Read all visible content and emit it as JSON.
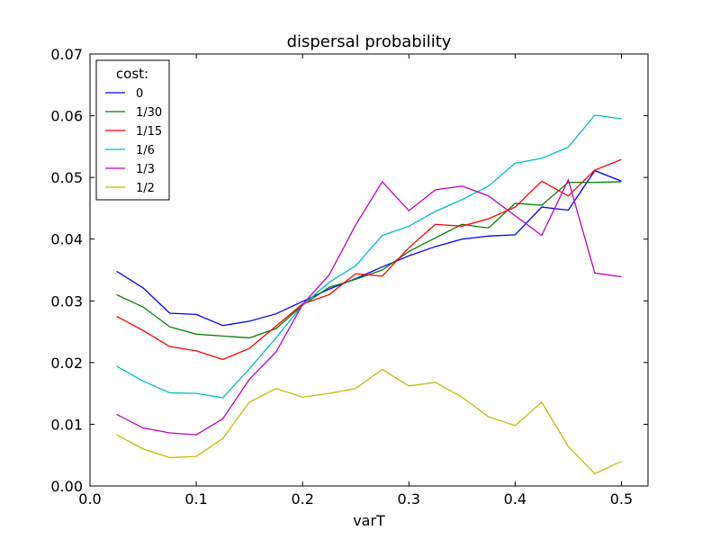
{
  "chart_data": {
    "type": "line",
    "title": "dispersal probability",
    "xlabel": "varT",
    "ylabel": "",
    "xlim": [
      0.0,
      0.525
    ],
    "ylim": [
      0.0,
      0.07
    ],
    "xticks": [
      0.0,
      0.1,
      0.2,
      0.3,
      0.4,
      0.5
    ],
    "xtick_labels": [
      "0.0",
      "0.1",
      "0.2",
      "0.3",
      "0.4",
      "0.5"
    ],
    "yticks": [
      0.0,
      0.01,
      0.02,
      0.03,
      0.04,
      0.05,
      0.06,
      0.07
    ],
    "ytick_labels": [
      "0.00",
      "0.01",
      "0.02",
      "0.03",
      "0.04",
      "0.05",
      "0.06",
      "0.07"
    ],
    "grid": false,
    "legend": {
      "title": "cost:",
      "placement": "top-left"
    },
    "x": [
      0.025,
      0.05,
      0.075,
      0.1,
      0.125,
      0.15,
      0.175,
      0.2,
      0.225,
      0.25,
      0.275,
      0.3,
      0.325,
      0.35,
      0.375,
      0.4,
      0.425,
      0.45,
      0.475,
      0.5
    ],
    "series": [
      {
        "name": "0",
        "color": "#0000ff",
        "values": [
          0.0348,
          0.0321,
          0.028,
          0.0278,
          0.026,
          0.0267,
          0.0279,
          0.0299,
          0.0319,
          0.0336,
          0.0355,
          0.0373,
          0.0388,
          0.04,
          0.0405,
          0.0407,
          0.0452,
          0.0447,
          0.0511,
          0.0494
        ]
      },
      {
        "name": "1/30",
        "color": "#008000",
        "values": [
          0.031,
          0.029,
          0.0258,
          0.0246,
          0.0243,
          0.024,
          0.0255,
          0.0293,
          0.0322,
          0.0335,
          0.035,
          0.038,
          0.0402,
          0.0424,
          0.0418,
          0.0458,
          0.0455,
          0.0492,
          0.0492,
          0.0493
        ]
      },
      {
        "name": "1/15",
        "color": "#ff0000",
        "values": [
          0.0275,
          0.0252,
          0.0226,
          0.0219,
          0.0205,
          0.0223,
          0.0259,
          0.0295,
          0.031,
          0.0344,
          0.034,
          0.0386,
          0.0424,
          0.0421,
          0.0433,
          0.0452,
          0.0494,
          0.047,
          0.0512,
          0.0529
        ]
      },
      {
        "name": "1/6",
        "color": "#00bfbf",
        "values": [
          0.0194,
          0.017,
          0.0151,
          0.015,
          0.0143,
          0.019,
          0.024,
          0.0293,
          0.033,
          0.0357,
          0.0406,
          0.0421,
          0.0445,
          0.0464,
          0.0486,
          0.0523,
          0.0531,
          0.0549,
          0.0601,
          0.0595
        ]
      },
      {
        "name": "1/3",
        "color": "#bf00bf",
        "values": [
          0.0116,
          0.0094,
          0.0086,
          0.0083,
          0.0109,
          0.0173,
          0.0217,
          0.0294,
          0.0342,
          0.0423,
          0.0493,
          0.0446,
          0.048,
          0.0486,
          0.047,
          0.0438,
          0.0406,
          0.0496,
          0.0345,
          0.0339
        ]
      },
      {
        "name": "1/2",
        "color": "#bfbf00",
        "values": [
          0.0083,
          0.006,
          0.0046,
          0.0048,
          0.0077,
          0.0136,
          0.0158,
          0.0144,
          0.015,
          0.0158,
          0.0189,
          0.0162,
          0.0168,
          0.0144,
          0.0112,
          0.0098,
          0.0136,
          0.0064,
          0.002,
          0.004
        ]
      }
    ]
  }
}
